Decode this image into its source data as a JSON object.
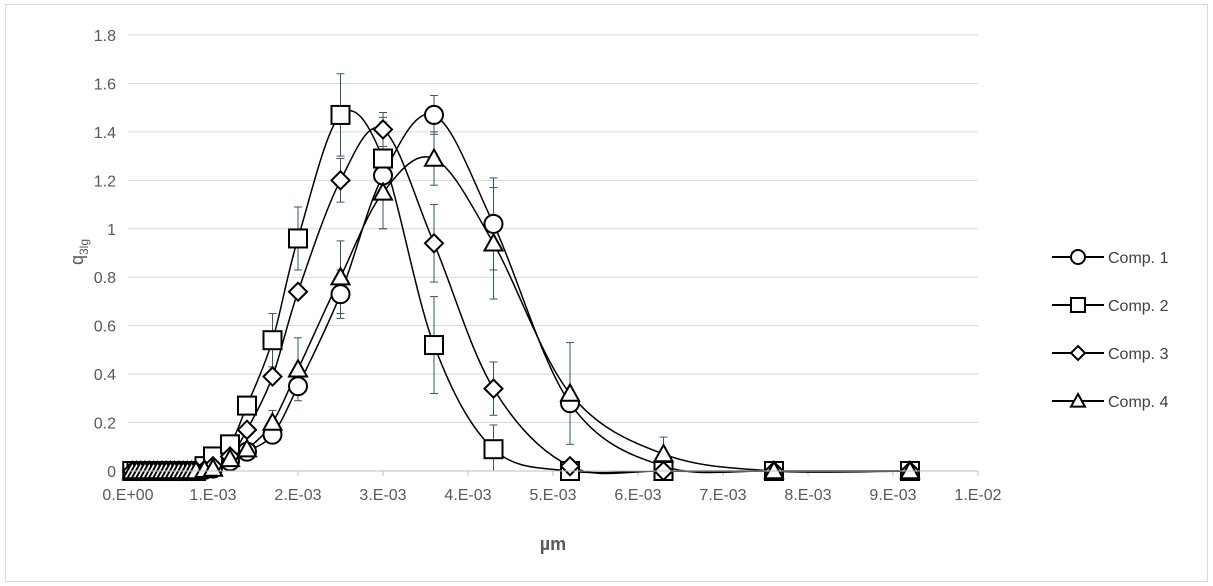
{
  "chart_data": {
    "type": "scatter",
    "xlabel": "µm",
    "ylabel": "q",
    "ylabel_sub": "3lg",
    "xlim": [
      0,
      0.01
    ],
    "ylim": [
      0,
      1.8
    ],
    "x_tick_labels": [
      "0.E+00",
      "1.E-03",
      "2.E-03",
      "3.E-03",
      "4.E-03",
      "5.E-03",
      "6.E-03",
      "7.E-03",
      "8.E-03",
      "9.E-03",
      "1.E-02"
    ],
    "y_tick_labels": [
      "0",
      "0.2",
      "0.4",
      "0.6",
      "0.8",
      "1",
      "1.2",
      "1.4",
      "1.6",
      "1.8"
    ],
    "grid": "horizontal",
    "legend_position": "right",
    "colors": {
      "series": "#000000",
      "error_bar": "#2e5a6e",
      "grid": "#d9d9d9"
    },
    "series": [
      {
        "name": "Comp. 1",
        "marker": "circle",
        "x": [
          5e-05,
          0.0001,
          0.00015,
          0.0002,
          0.00025,
          0.0003,
          0.00035,
          0.0004,
          0.00045,
          0.0005,
          0.00055,
          0.0006,
          0.00065,
          0.0007,
          0.00075,
          0.0008,
          0.0009,
          0.001,
          0.0012,
          0.0014,
          0.0017,
          0.002,
          0.0025,
          0.003,
          0.0036,
          0.0043,
          0.0052,
          0.0063,
          0.0076,
          0.0092
        ],
        "y": [
          0,
          0,
          0,
          0,
          0,
          0,
          0,
          0,
          0,
          0,
          0,
          0,
          0,
          0,
          0,
          0,
          0.005,
          0.01,
          0.04,
          0.08,
          0.15,
          0.35,
          0.73,
          1.22,
          1.47,
          1.02,
          0.28,
          0.02,
          0,
          0
        ],
        "error_bars": [
          {
            "x": 0.0025,
            "y": 0.73,
            "err": 0.1
          },
          {
            "x": 0.003,
            "y": 1.22,
            "err": 0.22
          },
          {
            "x": 0.0036,
            "y": 1.47,
            "err": 0.08
          },
          {
            "x": 0.0043,
            "y": 1.02,
            "err": 0.19
          }
        ]
      },
      {
        "name": "Comp. 2",
        "marker": "square",
        "x": [
          5e-05,
          0.0001,
          0.00015,
          0.0002,
          0.00025,
          0.0003,
          0.00035,
          0.0004,
          0.00045,
          0.0005,
          0.00055,
          0.0006,
          0.00065,
          0.0007,
          0.00075,
          0.0008,
          0.0009,
          0.001,
          0.0012,
          0.0014,
          0.0017,
          0.002,
          0.0025,
          0.003,
          0.0036,
          0.0043,
          0.0052,
          0.0063,
          0.0076,
          0.0092
        ],
        "y": [
          0,
          0,
          0,
          0,
          0,
          0,
          0,
          0,
          0,
          0,
          0,
          0,
          0,
          0,
          0,
          0,
          0.02,
          0.06,
          0.11,
          0.27,
          0.54,
          0.96,
          1.47,
          1.29,
          0.52,
          0.09,
          0,
          0,
          0,
          0
        ],
        "error_bars": [
          {
            "x": 0.0017,
            "y": 0.54,
            "err": 0.11
          },
          {
            "x": 0.002,
            "y": 0.96,
            "err": 0.13
          },
          {
            "x": 0.0025,
            "y": 1.47,
            "err": 0.17
          },
          {
            "x": 0.003,
            "y": 1.29,
            "err": 0.17
          },
          {
            "x": 0.0036,
            "y": 0.52,
            "err": 0.2
          },
          {
            "x": 0.0043,
            "y": 0.09,
            "err": 0.1
          }
        ]
      },
      {
        "name": "Comp. 3",
        "marker": "diamond",
        "x": [
          5e-05,
          0.0001,
          0.00015,
          0.0002,
          0.00025,
          0.0003,
          0.00035,
          0.0004,
          0.00045,
          0.0005,
          0.00055,
          0.0006,
          0.00065,
          0.0007,
          0.00075,
          0.0008,
          0.0009,
          0.001,
          0.0012,
          0.0014,
          0.0017,
          0.002,
          0.0025,
          0.003,
          0.0036,
          0.0043,
          0.0052,
          0.0063,
          0.0076,
          0.0092
        ],
        "y": [
          0,
          0,
          0,
          0,
          0,
          0,
          0,
          0,
          0,
          0,
          0,
          0,
          0,
          0,
          0,
          0,
          0.005,
          0.02,
          0.06,
          0.17,
          0.39,
          0.74,
          1.2,
          1.41,
          0.94,
          0.34,
          0.02,
          0,
          0,
          0
        ],
        "error_bars": [
          {
            "x": 0.0025,
            "y": 1.2,
            "err": 0.09
          },
          {
            "x": 0.003,
            "y": 1.41,
            "err": 0.07
          },
          {
            "x": 0.0036,
            "y": 0.94,
            "err": 0.16
          },
          {
            "x": 0.0043,
            "y": 0.34,
            "err": 0.11
          }
        ]
      },
      {
        "name": "Comp. 4",
        "marker": "triangle",
        "x": [
          5e-05,
          0.0001,
          0.00015,
          0.0002,
          0.00025,
          0.0003,
          0.00035,
          0.0004,
          0.00045,
          0.0005,
          0.00055,
          0.0006,
          0.00065,
          0.0007,
          0.00075,
          0.0008,
          0.0009,
          0.001,
          0.0012,
          0.0014,
          0.0017,
          0.002,
          0.0025,
          0.003,
          0.0036,
          0.0043,
          0.0052,
          0.0063,
          0.0076,
          0.0092
        ],
        "y": [
          0,
          0,
          0,
          0,
          0,
          0,
          0,
          0,
          0,
          0,
          0,
          0,
          0,
          0,
          0,
          0,
          0.005,
          0.01,
          0.05,
          0.09,
          0.2,
          0.42,
          0.8,
          1.15,
          1.29,
          0.94,
          0.32,
          0.07,
          0,
          0
        ],
        "error_bars": [
          {
            "x": 0.0017,
            "y": 0.2,
            "err": 0.05
          },
          {
            "x": 0.002,
            "y": 0.42,
            "err": 0.13
          },
          {
            "x": 0.0025,
            "y": 0.8,
            "err": 0.15
          },
          {
            "x": 0.003,
            "y": 1.15,
            "err": 0.15
          },
          {
            "x": 0.0036,
            "y": 1.29,
            "err": 0.11
          },
          {
            "x": 0.0043,
            "y": 0.94,
            "err": 0.23
          },
          {
            "x": 0.0052,
            "y": 0.32,
            "err": 0.21
          },
          {
            "x": 0.0063,
            "y": 0.07,
            "err": 0.07
          }
        ]
      }
    ]
  }
}
